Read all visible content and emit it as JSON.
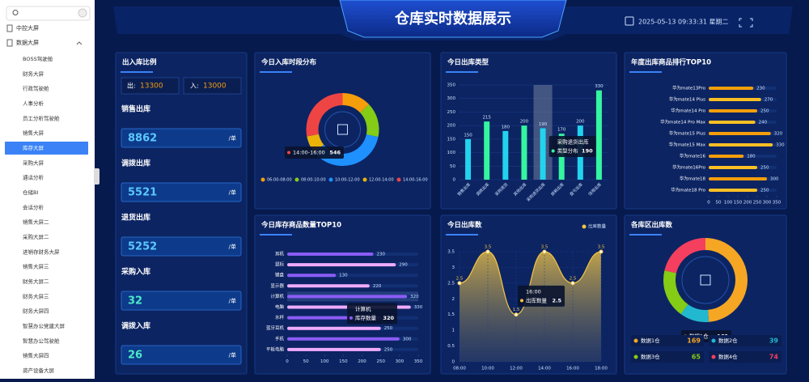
{
  "sidebar": {
    "menu": [
      "中控大屏",
      "数据大屏"
    ],
    "submenu": [
      "BOSS驾驶舱",
      "财务大屏",
      "行政驾驶舱",
      "人事分析",
      "员工分析驾驶舱",
      "销售大屏",
      "库存大屏",
      "采购大屏",
      "通话分析",
      "仓储BI",
      "会话分析",
      "销售大屏二",
      "采购大屏二",
      "进销存财务大屏",
      "销售大屏三",
      "财务大屏二",
      "财务大屏三",
      "财务大屏四",
      "智慧办公党建大屏",
      "智慧办公驾驶舱",
      "销售大屏四",
      "资产设备大屏"
    ],
    "active_submenu": 6
  },
  "header": {
    "title": "仓库实时数据展示",
    "datetime": "2025-05-13 09:33:31 星期二"
  },
  "summary": {
    "title": "出入库比例",
    "out_label": "出:",
    "out_value": 13300,
    "in_label": "入:",
    "in_value": 13000,
    "items": [
      {
        "label": "销售出库",
        "value": 8862,
        "unit": "/单",
        "color": "#5cc8ff"
      },
      {
        "label": "调拨出库",
        "value": 5521,
        "unit": "/单",
        "color": "#5cc8ff"
      },
      {
        "label": "退货出库",
        "value": 5252,
        "unit": "/单",
        "color": "#5cc8ff"
      },
      {
        "label": "采购入库",
        "value": 32,
        "unit": "/单",
        "color": "#4de8c8"
      },
      {
        "label": "调拨入库",
        "value": 26,
        "unit": "/单",
        "color": "#4de8c8"
      }
    ]
  },
  "chart_data": [
    {
      "type": "donut",
      "title": "今日入库时段分布",
      "categories": [
        "06:00-08:00",
        "08:00-10:00",
        "10:00-12:00",
        "12:00-14:00",
        "14:00-16:00"
      ],
      "values": [
        250,
        300,
        700,
        150,
        546
      ],
      "colors": [
        "#f59e0b",
        "#84cc16",
        "#1e90ff",
        "#eab308",
        "#ef4444"
      ],
      "tooltip_index": 4
    },
    {
      "type": "bar",
      "title": "今日出库类型",
      "categories": [
        "销售出库",
        "调拨出库",
        "采购退货",
        "其他出库",
        "采购退货出库",
        "损耗出库",
        "盘亏出库",
        "领用出库"
      ],
      "values": [
        150,
        215,
        180,
        200,
        190,
        170,
        200,
        330
      ],
      "series_name": "类型分布",
      "colors": [
        "#22d3ee",
        "#34f5a0"
      ],
      "ylim": [
        0,
        350
      ],
      "yticks": [
        0,
        50,
        100,
        150,
        200,
        250,
        300,
        350
      ],
      "tooltip_index": 4
    },
    {
      "type": "hbar",
      "title": "年度出库商品排行TOP10",
      "categories": [
        "华为mate13Pro",
        "华为mate14 Plus",
        "华为mate14 Pro",
        "华为mate14 Pro Max",
        "华为mate15 Plus",
        "华为mate15 Max",
        "华为mate16",
        "华为mate16Pro",
        "华为mate18",
        "华为mate18 Pro"
      ],
      "values": [
        230,
        270,
        250,
        240,
        320,
        330,
        180,
        250,
        300,
        250
      ],
      "colors": [
        "#f59e0b",
        "#fbbf24"
      ],
      "xlim": [
        0,
        350
      ],
      "xticks": [
        0,
        50,
        100,
        150,
        200,
        250,
        300,
        350
      ]
    },
    {
      "type": "hbar",
      "title": "今日库存商品数量TOP10",
      "categories": [
        "耳机",
        "鼠标",
        "键盘",
        "显示器",
        "计算机",
        "电脑",
        "水杯",
        "蓝牙耳机",
        "手机",
        "平板电脑"
      ],
      "values": [
        230,
        290,
        130,
        220,
        320,
        330,
        250,
        250,
        300,
        250
      ],
      "series_name": "库存数量",
      "colors": [
        "#8b5cf6",
        "#f0abfc"
      ],
      "xlim": [
        0,
        350
      ],
      "xticks": [
        0,
        50,
        100,
        150,
        200,
        250,
        300,
        350
      ],
      "tooltip_index": 4
    },
    {
      "type": "area",
      "title": "今日出库数",
      "categories": [
        "08:00",
        "10:00",
        "12:00",
        "14:00",
        "16:00",
        "18:00"
      ],
      "series": [
        {
          "name": "出库数量",
          "color": "#f5c542",
          "values": [
            2.5,
            3.5,
            1.5,
            3.5,
            2.5,
            3.5
          ]
        }
      ],
      "ylim": [
        0,
        3.5
      ],
      "yticks": [
        0,
        0.5,
        1,
        1.5,
        2,
        2.5,
        3,
        3.5
      ],
      "tooltip_index": 4
    },
    {
      "type": "donut",
      "title": "各库区出库数",
      "categories": [
        "数据1仓",
        "数据2仓",
        "数据3仓",
        "数据4仓"
      ],
      "values": [
        169,
        39,
        65,
        74
      ],
      "colors": [
        "#f5a623",
        "#22b8cf",
        "#84cc16",
        "#f43f5e"
      ],
      "tooltip_index": 0,
      "legend": true
    }
  ]
}
